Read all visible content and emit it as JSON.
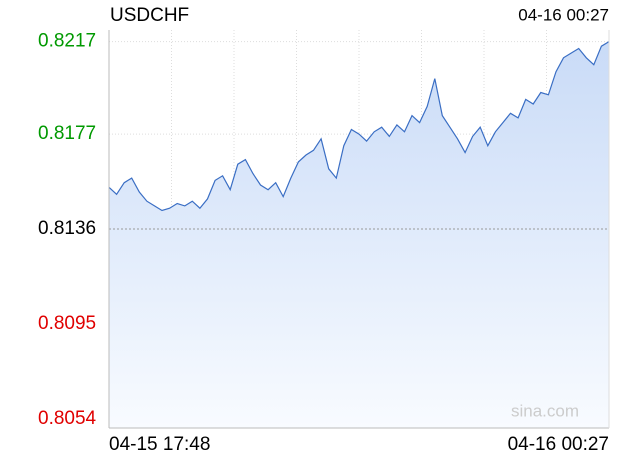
{
  "chart_data": {
    "type": "line",
    "title": "USDCHF",
    "timestamp": "04-16 00:27",
    "watermark": "sina.com",
    "categories": [
      "04-15 17:48",
      null,
      null,
      null,
      null,
      null,
      null,
      null,
      null,
      null,
      null,
      null,
      null,
      null,
      null,
      null,
      null,
      null,
      null,
      null,
      null,
      null,
      null,
      null,
      null,
      null,
      null,
      null,
      null,
      null,
      null,
      null,
      null,
      null,
      null,
      null,
      null,
      null,
      null,
      null,
      null,
      null,
      null,
      null,
      null,
      null,
      null,
      null,
      null,
      null,
      null,
      null,
      null,
      null,
      null,
      null,
      null,
      null,
      null,
      null,
      null,
      null,
      null,
      null,
      null,
      null,
      "04-16 00:27"
    ],
    "values": [
      0.8154,
      0.8151,
      0.8156,
      0.8158,
      0.8152,
      0.8148,
      0.8146,
      0.8144,
      0.8145,
      0.8147,
      0.8146,
      0.8148,
      0.8145,
      0.8149,
      0.8157,
      0.8159,
      0.8153,
      0.8164,
      0.8166,
      0.816,
      0.8155,
      0.8153,
      0.8156,
      0.815,
      0.8158,
      0.8165,
      0.8168,
      0.817,
      0.8175,
      0.8162,
      0.8158,
      0.8172,
      0.8179,
      0.8177,
      0.8174,
      0.8178,
      0.818,
      0.8176,
      0.8181,
      0.8178,
      0.8185,
      0.8182,
      0.8189,
      0.8201,
      0.8185,
      0.818,
      0.8175,
      0.8169,
      0.8176,
      0.818,
      0.8172,
      0.8178,
      0.8182,
      0.8186,
      0.8184,
      0.8192,
      0.819,
      0.8195,
      0.8194,
      0.8204,
      0.821,
      0.8212,
      0.8214,
      0.821,
      0.8207,
      0.8215,
      0.8217
    ],
    "color": "#3a6ec4",
    "prev_close": 0.8136,
    "up_color": "#009900",
    "down_color": "#e00000",
    "ylim": [
      0.805,
      0.8222
    ],
    "yticks": [
      0.8054,
      0.8095,
      0.8136,
      0.8177,
      0.8217
    ],
    "grid": true
  }
}
